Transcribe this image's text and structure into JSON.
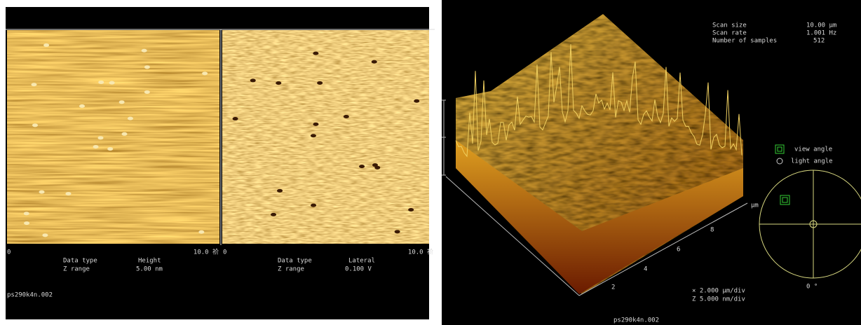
{
  "left_panel": {
    "images": [
      {
        "scale_start": "0",
        "scale_end": "10.0 祄",
        "data_type_label": "Data type",
        "data_type": "Height",
        "z_range_label": "Z range",
        "z_range": "5.00 nm"
      },
      {
        "scale_start": "0",
        "scale_end": "10.0 祄",
        "data_type_label": "Data type",
        "data_type": "Lateral",
        "z_range_label": "Z range",
        "z_range": "0.100  V"
      }
    ],
    "file_name": "ps290k4n.002"
  },
  "right_panel": {
    "info": [
      [
        "Scan size",
        "10.00 µm"
      ],
      [
        "Scan rate",
        "1.001 Hz"
      ],
      [
        "Number of samples",
        "512"
      ]
    ],
    "axis_ticks": [
      "2",
      "4",
      "6",
      "8"
    ],
    "axis_unit": "µm",
    "view_angle": "view angle",
    "light_angle": "light angle",
    "angle_value": "0 °",
    "x_div": "×  2.000 µm/div",
    "z_div": "Z  5.000 nm/div",
    "file_name": "ps290k4n.002"
  }
}
